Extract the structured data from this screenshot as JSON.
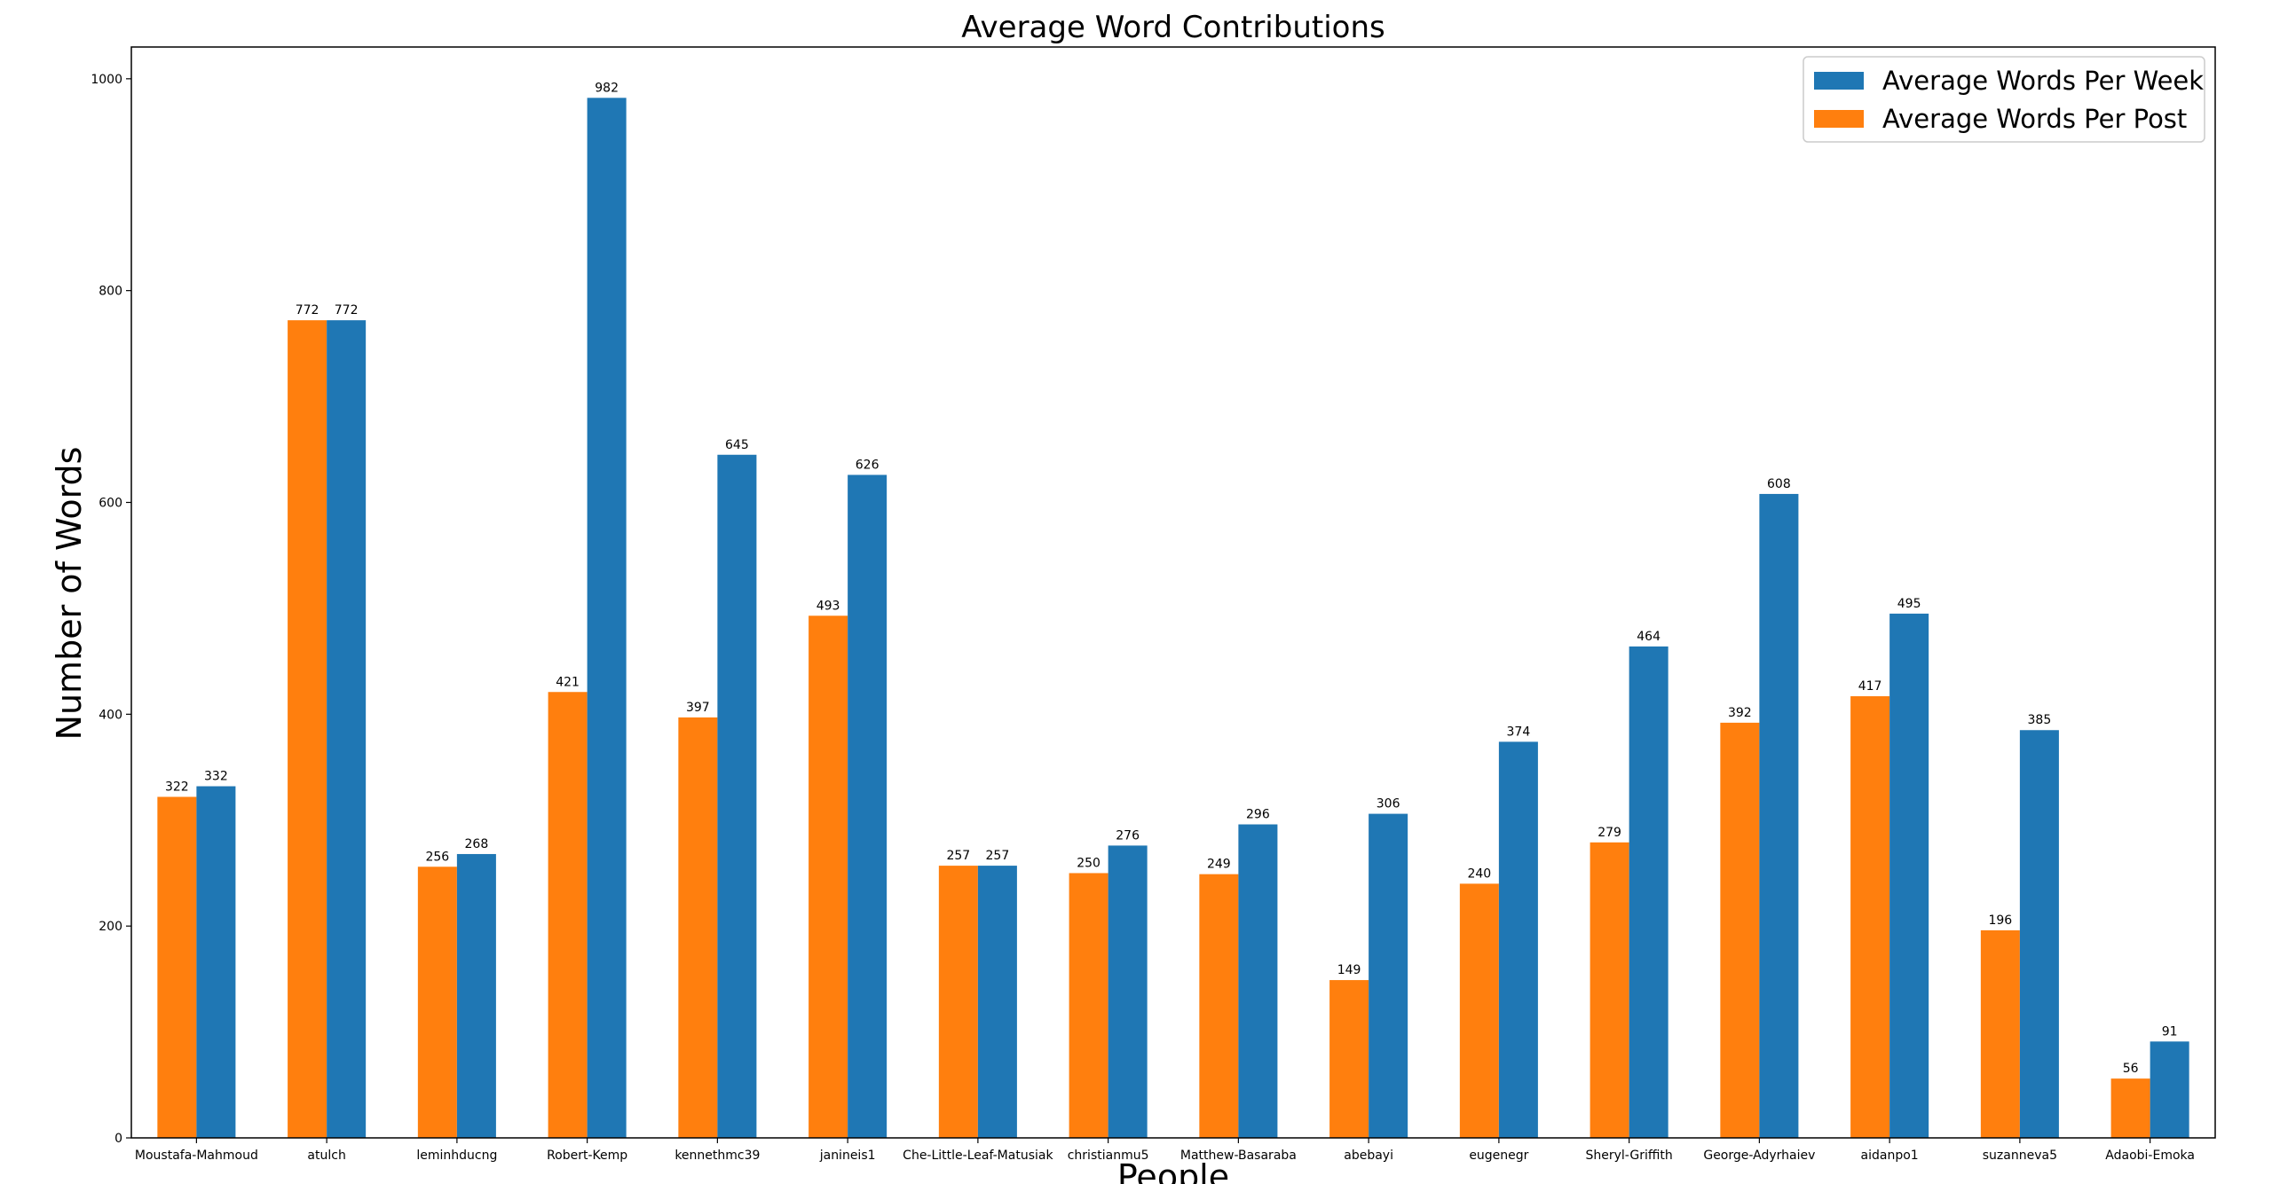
{
  "chart_data": {
    "type": "bar",
    "title": "Average Word Contributions",
    "xlabel": "People",
    "ylabel": "Number of Words",
    "ylim": [
      0,
      1030
    ],
    "yticks": [
      0,
      200,
      400,
      600,
      800,
      1000
    ],
    "legend_position": "top-right",
    "grid": false,
    "categories": [
      "Moustafa-Mahmoud",
      "atulch",
      "leminhducng",
      "Robert-Kemp",
      "kennethmc39",
      "janineis1",
      "Che-Little-Leaf-Matusiak",
      "christianmu5",
      "Matthew-Basaraba",
      "abebayi",
      "eugenegr",
      "Sheryl-Griffith",
      "George-Adyrhaiev",
      "aidanpo1",
      "suzanneva5",
      "Adaobi-Emoka"
    ],
    "series": [
      {
        "name": "Average Words Per Post",
        "color": "#ff7f0e",
        "values": [
          322,
          772,
          256,
          421,
          397,
          493,
          257,
          250,
          249,
          149,
          240,
          279,
          392,
          417,
          196,
          56
        ]
      },
      {
        "name": "Average Words Per Week",
        "color": "#1f77b4",
        "values": [
          332,
          772,
          268,
          982,
          645,
          626,
          257,
          276,
          296,
          306,
          374,
          464,
          608,
          495,
          385,
          91
        ]
      }
    ],
    "legend_order": [
      1,
      0
    ]
  }
}
